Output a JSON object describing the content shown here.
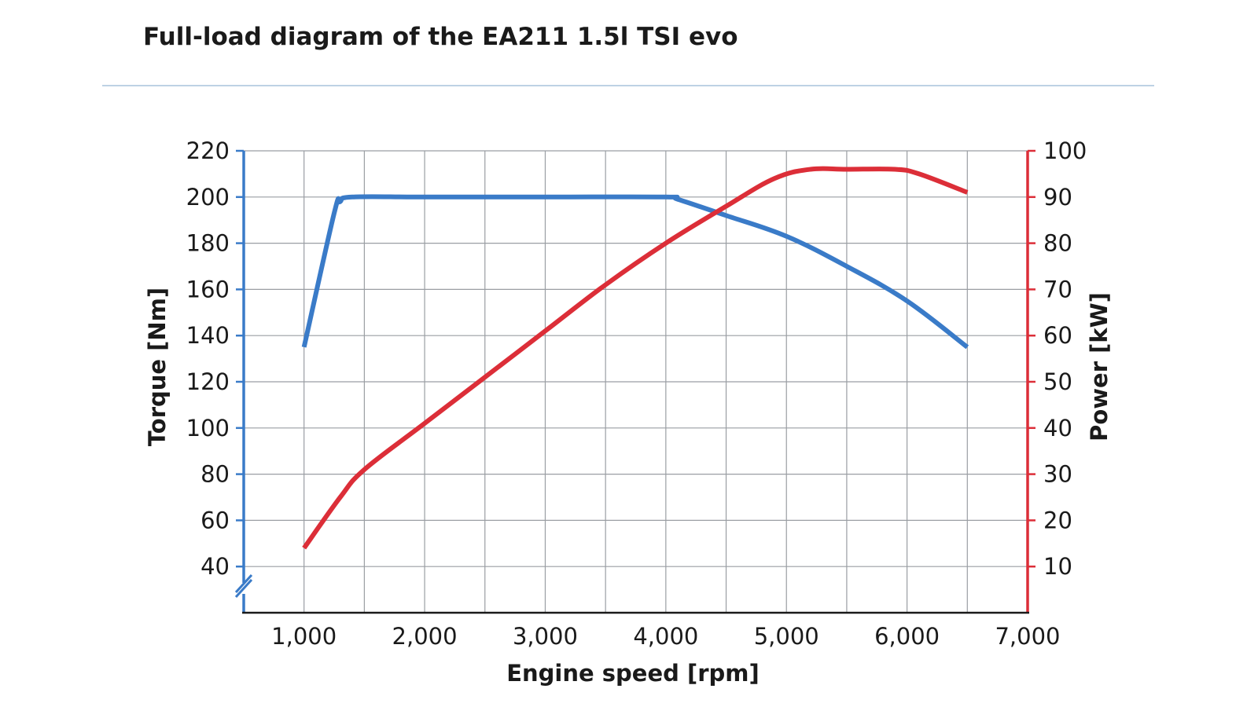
{
  "chart_data": {
    "type": "line",
    "title": "Full-load diagram of the EA211 1.5l TSI evo",
    "xlabel": "Engine speed [rpm]",
    "ylabel": "Torque [Nm]",
    "y2label": "Power [kW]",
    "xlim": [
      500,
      7000
    ],
    "ylim": [
      20,
      220
    ],
    "y2lim": [
      0,
      100
    ],
    "x_ticks": [
      1000,
      2000,
      3000,
      4000,
      5000,
      6000,
      7000
    ],
    "x_tick_labels": [
      "1,000",
      "2,000",
      "3,000",
      "4,000",
      "5,000",
      "6,000",
      "7,000"
    ],
    "y_ticks": [
      40,
      60,
      80,
      100,
      120,
      140,
      160,
      180,
      200,
      220
    ],
    "y_tick_labels": [
      "40",
      "60",
      "80",
      "100",
      "120",
      "140",
      "160",
      "180",
      "200",
      "220"
    ],
    "y2_ticks": [
      10,
      20,
      30,
      40,
      50,
      60,
      70,
      80,
      90,
      100
    ],
    "y2_tick_labels": [
      "10",
      "20",
      "30",
      "40",
      "50",
      "60",
      "70",
      "80",
      "90",
      "100"
    ],
    "grid": true,
    "axis_break": "left-bottom",
    "series": [
      {
        "axis": "left",
        "color": "#3a7bc8",
        "x": [
          1000,
          1250,
          1300,
          1400,
          2000,
          3000,
          4000,
          4100,
          4500,
          5000,
          5500,
          6000,
          6500
        ],
        "y": [
          135,
          193,
          198,
          200,
          200,
          200,
          200,
          199,
          192,
          183,
          170,
          155,
          135
        ]
      },
      {
        "axis": "right",
        "color": "#dc2e38",
        "x": [
          1000,
          1300,
          1500,
          2000,
          2500,
          3000,
          3500,
          4000,
          4500,
          4900,
          5200,
          5500,
          5900,
          6100,
          6500
        ],
        "y": [
          14,
          25,
          31,
          41,
          51,
          61,
          71,
          80,
          88,
          94,
          96,
          96,
          96,
          95,
          91
        ]
      }
    ]
  },
  "colors": {
    "left_axis": "#3a7bc8",
    "right_axis": "#dc2e38",
    "grid": "#9a9ea3",
    "divider": "#a9c4dc"
  }
}
